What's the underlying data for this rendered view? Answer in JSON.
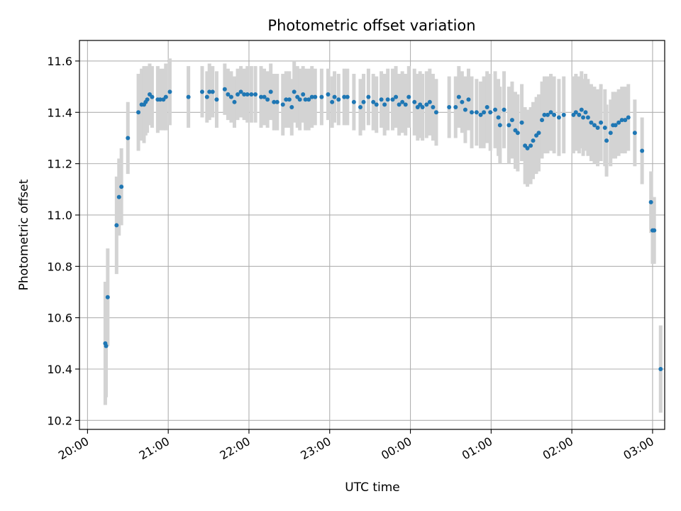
{
  "chart_data": {
    "type": "scatter",
    "title": "Photometric offset variation",
    "xlabel": "UTC time",
    "ylabel": "Photometric offset",
    "x_unit": "hours after 20:00 UTC",
    "xlim": [
      -0.1,
      7.15
    ],
    "ylim": [
      10.165,
      11.68
    ],
    "xticks": [
      {
        "value": 0,
        "label": "20:00"
      },
      {
        "value": 1,
        "label": "21:00"
      },
      {
        "value": 2,
        "label": "22:00"
      },
      {
        "value": 3,
        "label": "23:00"
      },
      {
        "value": 4,
        "label": "00:00"
      },
      {
        "value": 5,
        "label": "01:00"
      },
      {
        "value": 6,
        "label": "02:00"
      },
      {
        "value": 7,
        "label": "03:00"
      }
    ],
    "yticks": [
      {
        "value": 10.2,
        "label": "10.2"
      },
      {
        "value": 10.4,
        "label": "10.4"
      },
      {
        "value": 10.6,
        "label": "10.6"
      },
      {
        "value": 10.8,
        "label": "10.8"
      },
      {
        "value": 11.0,
        "label": "11.0"
      },
      {
        "value": 11.2,
        "label": "11.2"
      },
      {
        "value": 11.4,
        "label": "11.4"
      },
      {
        "value": 11.6,
        "label": "11.6"
      }
    ],
    "grid": true,
    "colors": {
      "points": "#1f77b4",
      "errorbars": "#d3d3d3",
      "grid": "#b0b0b0"
    },
    "points": [
      [
        0.22,
        10.5,
        0.24
      ],
      [
        0.23,
        10.49,
        0.2
      ],
      [
        0.25,
        10.68,
        0.19
      ],
      [
        0.36,
        10.96,
        0.19
      ],
      [
        0.39,
        11.07,
        0.15
      ],
      [
        0.42,
        11.11,
        0.15
      ],
      [
        0.5,
        11.3,
        0.14
      ],
      [
        0.63,
        11.4,
        0.15
      ],
      [
        0.67,
        11.43,
        0.14
      ],
      [
        0.7,
        11.43,
        0.15
      ],
      [
        0.72,
        11.44,
        0.13
      ],
      [
        0.74,
        11.45,
        0.13
      ],
      [
        0.77,
        11.47,
        0.12
      ],
      [
        0.8,
        11.46,
        0.12
      ],
      [
        0.87,
        11.45,
        0.13
      ],
      [
        0.9,
        11.45,
        0.12
      ],
      [
        0.94,
        11.45,
        0.12
      ],
      [
        0.97,
        11.46,
        0.13
      ],
      [
        1.02,
        11.48,
        0.13
      ],
      [
        1.25,
        11.46,
        0.12
      ],
      [
        1.42,
        11.48,
        0.1
      ],
      [
        1.48,
        11.46,
        0.1
      ],
      [
        1.51,
        11.48,
        0.11
      ],
      [
        1.55,
        11.48,
        0.1
      ],
      [
        1.6,
        11.45,
        0.11
      ],
      [
        1.7,
        11.49,
        0.1
      ],
      [
        1.74,
        11.47,
        0.1
      ],
      [
        1.78,
        11.46,
        0.1
      ],
      [
        1.82,
        11.44,
        0.1
      ],
      [
        1.86,
        11.47,
        0.1
      ],
      [
        1.9,
        11.48,
        0.1
      ],
      [
        1.94,
        11.47,
        0.1
      ],
      [
        1.98,
        11.47,
        0.11
      ],
      [
        2.03,
        11.47,
        0.11
      ],
      [
        2.08,
        11.47,
        0.11
      ],
      [
        2.15,
        11.46,
        0.12
      ],
      [
        2.19,
        11.46,
        0.11
      ],
      [
        2.23,
        11.45,
        0.11
      ],
      [
        2.27,
        11.48,
        0.11
      ],
      [
        2.31,
        11.44,
        0.11
      ],
      [
        2.35,
        11.44,
        0.11
      ],
      [
        2.42,
        11.43,
        0.12
      ],
      [
        2.46,
        11.45,
        0.11
      ],
      [
        2.5,
        11.45,
        0.11
      ],
      [
        2.53,
        11.42,
        0.11
      ],
      [
        2.56,
        11.48,
        0.12
      ],
      [
        2.6,
        11.46,
        0.12
      ],
      [
        2.63,
        11.45,
        0.12
      ],
      [
        2.67,
        11.47,
        0.11
      ],
      [
        2.7,
        11.45,
        0.12
      ],
      [
        2.74,
        11.45,
        0.12
      ],
      [
        2.78,
        11.46,
        0.12
      ],
      [
        2.82,
        11.46,
        0.11
      ],
      [
        2.9,
        11.46,
        0.11
      ],
      [
        2.98,
        11.47,
        0.1
      ],
      [
        3.03,
        11.44,
        0.1
      ],
      [
        3.06,
        11.46,
        0.1
      ],
      [
        3.11,
        11.45,
        0.1
      ],
      [
        3.18,
        11.46,
        0.11
      ],
      [
        3.22,
        11.46,
        0.11
      ],
      [
        3.3,
        11.44,
        0.11
      ],
      [
        3.38,
        11.42,
        0.11
      ],
      [
        3.42,
        11.44,
        0.11
      ],
      [
        3.48,
        11.46,
        0.11
      ],
      [
        3.54,
        11.44,
        0.11
      ],
      [
        3.58,
        11.43,
        0.11
      ],
      [
        3.64,
        11.45,
        0.11
      ],
      [
        3.68,
        11.43,
        0.12
      ],
      [
        3.72,
        11.45,
        0.12
      ],
      [
        3.78,
        11.45,
        0.12
      ],
      [
        3.82,
        11.46,
        0.12
      ],
      [
        3.86,
        11.43,
        0.12
      ],
      [
        3.9,
        11.44,
        0.12
      ],
      [
        3.94,
        11.43,
        0.12
      ],
      [
        3.98,
        11.46,
        0.12
      ],
      [
        4.05,
        11.44,
        0.13
      ],
      [
        4.09,
        11.42,
        0.13
      ],
      [
        4.12,
        11.43,
        0.13
      ],
      [
        4.15,
        11.42,
        0.13
      ],
      [
        4.2,
        11.43,
        0.13
      ],
      [
        4.24,
        11.44,
        0.13
      ],
      [
        4.28,
        11.42,
        0.13
      ],
      [
        4.32,
        11.4,
        0.13
      ],
      [
        4.48,
        11.42,
        0.12
      ],
      [
        4.56,
        11.42,
        0.12
      ],
      [
        4.6,
        11.46,
        0.12
      ],
      [
        4.64,
        11.44,
        0.12
      ],
      [
        4.68,
        11.41,
        0.13
      ],
      [
        4.72,
        11.45,
        0.12
      ],
      [
        4.76,
        11.4,
        0.14
      ],
      [
        4.82,
        11.4,
        0.13
      ],
      [
        4.87,
        11.39,
        0.13
      ],
      [
        4.91,
        11.4,
        0.14
      ],
      [
        4.95,
        11.42,
        0.14
      ],
      [
        4.99,
        11.4,
        0.15
      ],
      [
        5.05,
        11.41,
        0.15
      ],
      [
        5.09,
        11.38,
        0.15
      ],
      [
        5.11,
        11.35,
        0.15
      ],
      [
        5.16,
        11.41,
        0.15
      ],
      [
        5.22,
        11.35,
        0.15
      ],
      [
        5.26,
        11.37,
        0.15
      ],
      [
        5.3,
        11.33,
        0.15
      ],
      [
        5.33,
        11.32,
        0.15
      ],
      [
        5.38,
        11.36,
        0.15
      ],
      [
        5.42,
        11.27,
        0.15
      ],
      [
        5.45,
        11.26,
        0.15
      ],
      [
        5.49,
        11.27,
        0.15
      ],
      [
        5.52,
        11.29,
        0.15
      ],
      [
        5.56,
        11.31,
        0.15
      ],
      [
        5.59,
        11.32,
        0.15
      ],
      [
        5.63,
        11.37,
        0.15
      ],
      [
        5.66,
        11.39,
        0.15
      ],
      [
        5.7,
        11.39,
        0.15
      ],
      [
        5.74,
        11.4,
        0.15
      ],
      [
        5.78,
        11.39,
        0.15
      ],
      [
        5.84,
        11.38,
        0.15
      ],
      [
        5.9,
        11.39,
        0.15
      ],
      [
        6.02,
        11.39,
        0.15
      ],
      [
        6.05,
        11.4,
        0.15
      ],
      [
        6.09,
        11.39,
        0.15
      ],
      [
        6.12,
        11.41,
        0.15
      ],
      [
        6.14,
        11.38,
        0.15
      ],
      [
        6.17,
        11.4,
        0.15
      ],
      [
        6.2,
        11.38,
        0.15
      ],
      [
        6.24,
        11.36,
        0.15
      ],
      [
        6.28,
        11.35,
        0.15
      ],
      [
        6.32,
        11.34,
        0.15
      ],
      [
        6.36,
        11.36,
        0.15
      ],
      [
        6.41,
        11.34,
        0.15
      ],
      [
        6.43,
        11.29,
        0.14
      ],
      [
        6.48,
        11.32,
        0.13
      ],
      [
        6.51,
        11.35,
        0.13
      ],
      [
        6.54,
        11.35,
        0.13
      ],
      [
        6.58,
        11.36,
        0.13
      ],
      [
        6.62,
        11.37,
        0.13
      ],
      [
        6.66,
        11.37,
        0.13
      ],
      [
        6.7,
        11.38,
        0.13
      ],
      [
        6.78,
        11.32,
        0.13
      ],
      [
        6.87,
        11.25,
        0.13
      ],
      [
        6.98,
        11.05,
        0.12
      ],
      [
        7.0,
        10.94,
        0.13
      ],
      [
        7.02,
        10.94,
        0.13
      ],
      [
        7.1,
        10.4,
        0.17
      ]
    ]
  }
}
